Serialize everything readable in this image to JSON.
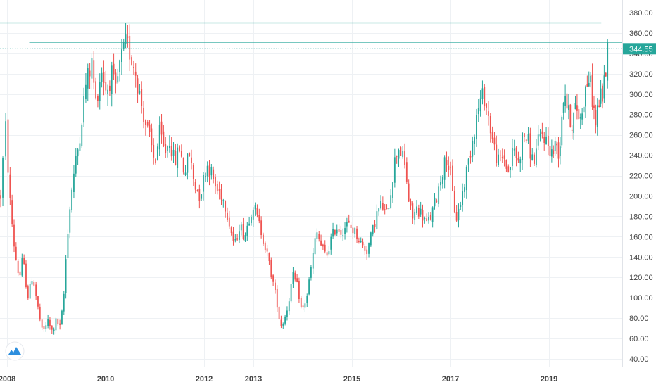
{
  "chart_data": {
    "type": "candlestick",
    "title": "",
    "xlabel": "",
    "ylabel": "",
    "ylim": [
      35,
      387
    ],
    "y_ticks": [
      "40.00",
      "60.00",
      "80.00",
      "100.00",
      "120.00",
      "140.00",
      "160.00",
      "180.00",
      "200.00",
      "220.00",
      "240.00",
      "260.00",
      "280.00",
      "300.00",
      "320.00",
      "340.00",
      "360.00",
      "380.00"
    ],
    "x_ticks": [
      "2008",
      "2010",
      "2012",
      "2013",
      "2015",
      "2017",
      "2019"
    ],
    "x_range": [
      2007.9,
      2020.75
    ],
    "grid": true,
    "last_price": "344.55",
    "colors": {
      "up": "#26a69a",
      "down": "#ef5350",
      "horizontal_lines": "#26a69a",
      "price_label_bg": "#26a69a",
      "price_label_text": "#ffffff",
      "grid": "#eef1f4",
      "axis_text": "#444444",
      "logo": "#2e8fde"
    },
    "horizontal_lines": [
      {
        "price": 370,
        "x_start": 2007.9,
        "x_end": 2020.25,
        "style": "solid"
      },
      {
        "price": 351,
        "x_start": 2008.45,
        "x_end": 2020.75,
        "style": "solid"
      },
      {
        "price": 344.55,
        "x_start": 2007.9,
        "x_end": 2020.75,
        "style": "dotted"
      }
    ],
    "price_path": [
      [
        2007.9,
        200
      ],
      [
        2007.98,
        268
      ],
      [
        2008.05,
        200
      ],
      [
        2008.15,
        148
      ],
      [
        2008.25,
        118
      ],
      [
        2008.32,
        140
      ],
      [
        2008.42,
        100
      ],
      [
        2008.52,
        122
      ],
      [
        2008.62,
        92
      ],
      [
        2008.72,
        64
      ],
      [
        2008.82,
        78
      ],
      [
        2008.92,
        66
      ],
      [
        2009.0,
        78
      ],
      [
        2009.08,
        70
      ],
      [
        2009.15,
        100
      ],
      [
        2009.22,
        160
      ],
      [
        2009.32,
        210
      ],
      [
        2009.45,
        250
      ],
      [
        2009.6,
        310
      ],
      [
        2009.72,
        330
      ],
      [
        2009.8,
        292
      ],
      [
        2009.92,
        325
      ],
      [
        2010.02,
        302
      ],
      [
        2010.12,
        320
      ],
      [
        2010.2,
        300
      ],
      [
        2010.3,
        332
      ],
      [
        2010.42,
        350
      ],
      [
        2010.5,
        340
      ],
      [
        2010.6,
        325
      ],
      [
        2010.72,
        292
      ],
      [
        2010.82,
        270
      ],
      [
        2010.92,
        250
      ],
      [
        2011.0,
        232
      ],
      [
        2011.1,
        262
      ],
      [
        2011.2,
        242
      ],
      [
        2011.3,
        256
      ],
      [
        2011.4,
        232
      ],
      [
        2011.5,
        248
      ],
      [
        2011.6,
        222
      ],
      [
        2011.7,
        242
      ],
      [
        2011.8,
        212
      ],
      [
        2011.92,
        200
      ],
      [
        2012.05,
        232
      ],
      [
        2012.15,
        222
      ],
      [
        2012.25,
        206
      ],
      [
        2012.35,
        202
      ],
      [
        2012.45,
        188
      ],
      [
        2012.55,
        165
      ],
      [
        2012.62,
        150
      ],
      [
        2012.72,
        172
      ],
      [
        2012.82,
        160
      ],
      [
        2012.92,
        180
      ],
      [
        2013.0,
        192
      ],
      [
        2013.08,
        178
      ],
      [
        2013.18,
        162
      ],
      [
        2013.28,
        142
      ],
      [
        2013.38,
        120
      ],
      [
        2013.48,
        95
      ],
      [
        2013.55,
        72
      ],
      [
        2013.62,
        78
      ],
      [
        2013.7,
        92
      ],
      [
        2013.8,
        122
      ],
      [
        2013.9,
        110
      ],
      [
        2013.98,
        86
      ],
      [
        2014.08,
        100
      ],
      [
        2014.18,
        132
      ],
      [
        2014.28,
        165
      ],
      [
        2014.38,
        150
      ],
      [
        2014.48,
        140
      ],
      [
        2014.58,
        158
      ],
      [
        2014.68,
        170
      ],
      [
        2014.78,
        165
      ],
      [
        2014.9,
        172
      ],
      [
        2015.0,
        168
      ],
      [
        2015.1,
        162
      ],
      [
        2015.2,
        152
      ],
      [
        2015.3,
        146
      ],
      [
        2015.4,
        162
      ],
      [
        2015.5,
        182
      ],
      [
        2015.6,
        192
      ],
      [
        2015.7,
        180
      ],
      [
        2015.78,
        202
      ],
      [
        2015.86,
        232
      ],
      [
        2015.94,
        250
      ],
      [
        2016.02,
        240
      ],
      [
        2016.1,
        222
      ],
      [
        2016.15,
        196
      ],
      [
        2016.22,
        178
      ],
      [
        2016.32,
        188
      ],
      [
        2016.42,
        182
      ],
      [
        2016.52,
        172
      ],
      [
        2016.62,
        182
      ],
      [
        2016.72,
        200
      ],
      [
        2016.82,
        222
      ],
      [
        2016.92,
        238
      ],
      [
        2017.0,
        222
      ],
      [
        2017.06,
        192
      ],
      [
        2017.12,
        178
      ],
      [
        2017.2,
        192
      ],
      [
        2017.28,
        212
      ],
      [
        2017.38,
        238
      ],
      [
        2017.48,
        265
      ],
      [
        2017.58,
        290
      ],
      [
        2017.68,
        300
      ],
      [
        2017.78,
        275
      ],
      [
        2017.88,
        248
      ],
      [
        2017.98,
        232
      ],
      [
        2018.08,
        240
      ],
      [
        2018.18,
        222
      ],
      [
        2018.28,
        248
      ],
      [
        2018.38,
        232
      ],
      [
        2018.48,
        262
      ],
      [
        2018.58,
        252
      ],
      [
        2018.68,
        232
      ],
      [
        2018.78,
        252
      ],
      [
        2018.88,
        262
      ],
      [
        2018.98,
        250
      ],
      [
        2019.08,
        242
      ],
      [
        2019.18,
        252
      ],
      [
        2019.25,
        240
      ],
      [
        2019.32,
        290
      ],
      [
        2019.38,
        305
      ],
      [
        2019.45,
        282
      ],
      [
        2019.55,
        272
      ],
      [
        2019.65,
        288
      ],
      [
        2019.75,
        275
      ],
      [
        2019.85,
        300
      ],
      [
        2019.95,
        318
      ],
      [
        2020.02,
        302
      ],
      [
        2020.08,
        282
      ],
      [
        2020.12,
        270
      ],
      [
        2020.18,
        292
      ],
      [
        2020.28,
        300
      ],
      [
        2020.36,
        325
      ],
      [
        2020.4,
        344.55
      ]
    ]
  }
}
